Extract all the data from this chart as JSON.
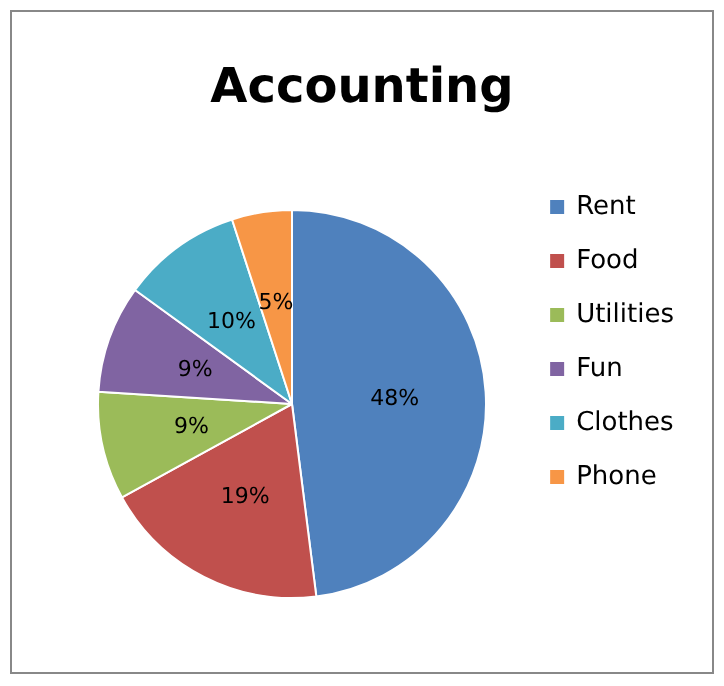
{
  "chart_data": {
    "type": "pie",
    "title": "Accounting",
    "categories": [
      "Rent",
      "Food",
      "Utilities",
      "Fun",
      "Clothes",
      "Phone"
    ],
    "values": [
      48,
      19,
      9,
      9,
      10,
      5
    ],
    "value_labels": [
      "48%",
      "19%",
      "9%",
      "9%",
      "10%",
      "5%"
    ],
    "colors": [
      "#4f81bd",
      "#c0504d",
      "#9bbb59",
      "#8064a2",
      "#4bacc6",
      "#f79646"
    ],
    "legend": "right"
  }
}
